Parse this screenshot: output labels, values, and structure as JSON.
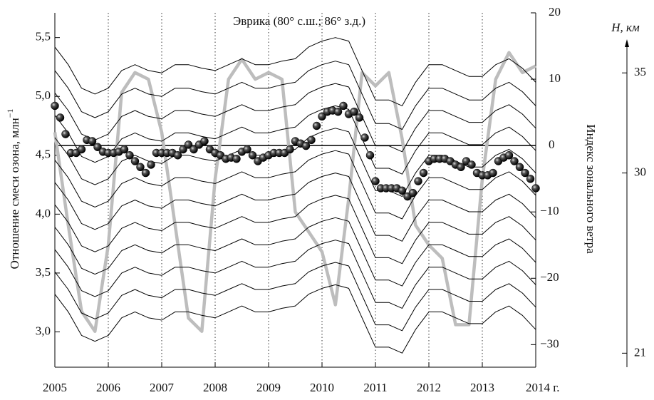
{
  "chart_data": {
    "type": "line",
    "title": "Эврика (80° с.ш.; 86° з.д.)",
    "ylabel": "Отношение смеси озона, млн",
    "ylabel_superscript": "−1",
    "y2label": "Индекс зонального ветра",
    "xlim": [
      2005,
      2014
    ],
    "xticks": [
      2005,
      2006,
      2007,
      2008,
      2009,
      2010,
      2011,
      2012,
      2013,
      {
        "value": 2014,
        "label": "2014 г."
      }
    ],
    "ylim": [
      2.7,
      5.71
    ],
    "yticks": [
      {
        "value": 3,
        "label": "3,0"
      },
      {
        "value": 3.5,
        "label": "3,5"
      },
      {
        "value": 4,
        "label": "4,0"
      },
      {
        "value": 4.5,
        "label": "4,5"
      },
      {
        "value": 5,
        "label": "5,0"
      },
      {
        "value": 5.5,
        "label": "5,5"
      }
    ],
    "y2lim": [
      -33.4,
      20
    ],
    "y2ticks": [
      {
        "value": -30,
        "label": "−30"
      },
      {
        "value": -20,
        "label": "−20"
      },
      {
        "value": -10,
        "label": "−10"
      },
      0,
      10,
      20
    ],
    "grid": true,
    "x": [
      2005.0,
      2005.25,
      2005.5,
      2005.75,
      2006.0,
      2006.25,
      2006.5,
      2006.75,
      2007.0,
      2007.25,
      2007.5,
      2007.75,
      2008.0,
      2008.25,
      2008.5,
      2008.75,
      2009.0,
      2009.25,
      2009.5,
      2009.75,
      2010.0,
      2010.25,
      2010.5,
      2010.75,
      2011.0,
      2011.25,
      2011.5,
      2011.75,
      2012.0,
      2012.25,
      2012.5,
      2012.75,
      2013.0,
      2013.25,
      2013.5,
      2013.75,
      2014.0
    ],
    "series": [
      {
        "color": "#000",
        "values": [
          5.42,
          5.27,
          5.07,
          5.02,
          5.07,
          5.22,
          5.27,
          5.22,
          5.2,
          5.27,
          5.27,
          5.24,
          5.22,
          5.27,
          5.32,
          5.27,
          5.27,
          5.3,
          5.32,
          5.42,
          5.47,
          5.5,
          5.47,
          5.22,
          4.97,
          4.97,
          4.92,
          5.12,
          5.27,
          5.27,
          5.22,
          5.17,
          5.17,
          5.27,
          5.32,
          5.24,
          5.12
        ]
      },
      {
        "color": "#000",
        "values": [
          5.22,
          5.07,
          4.87,
          4.82,
          4.87,
          5.02,
          5.07,
          5.02,
          5.0,
          5.07,
          5.07,
          5.04,
          5.02,
          5.07,
          5.12,
          5.07,
          5.07,
          5.1,
          5.12,
          5.22,
          5.27,
          5.3,
          5.27,
          5.02,
          4.77,
          4.77,
          4.72,
          4.92,
          5.07,
          5.07,
          5.02,
          4.97,
          4.97,
          5.07,
          5.12,
          5.04,
          4.92
        ]
      },
      {
        "color": "#000",
        "values": [
          5.03,
          4.88,
          4.68,
          4.63,
          4.68,
          4.83,
          4.88,
          4.83,
          4.81,
          4.88,
          4.88,
          4.85,
          4.83,
          4.88,
          4.93,
          4.88,
          4.88,
          4.91,
          4.93,
          5.03,
          5.08,
          5.11,
          5.08,
          4.83,
          4.58,
          4.58,
          4.53,
          4.73,
          4.88,
          4.88,
          4.83,
          4.78,
          4.78,
          4.88,
          4.93,
          4.85,
          4.73
        ]
      },
      {
        "color": "#000",
        "values": [
          4.84,
          4.69,
          4.49,
          4.44,
          4.49,
          4.64,
          4.69,
          4.64,
          4.62,
          4.69,
          4.69,
          4.66,
          4.64,
          4.69,
          4.74,
          4.69,
          4.69,
          4.72,
          4.74,
          4.84,
          4.89,
          4.92,
          4.89,
          4.64,
          4.39,
          4.39,
          4.34,
          4.54,
          4.69,
          4.69,
          4.64,
          4.59,
          4.59,
          4.69,
          4.74,
          4.66,
          4.54
        ]
      },
      {
        "color": "#000",
        "values": [
          4.65,
          4.5,
          4.3,
          4.25,
          4.3,
          4.45,
          4.5,
          4.45,
          4.43,
          4.5,
          4.5,
          4.47,
          4.45,
          4.5,
          4.55,
          4.5,
          4.5,
          4.53,
          4.55,
          4.65,
          4.7,
          4.73,
          4.7,
          4.45,
          4.2,
          4.2,
          4.15,
          4.35,
          4.5,
          4.5,
          4.45,
          4.4,
          4.4,
          4.5,
          4.55,
          4.47,
          4.35
        ]
      },
      {
        "color": "#000",
        "values": [
          4.46,
          4.31,
          4.11,
          4.06,
          4.11,
          4.26,
          4.31,
          4.26,
          4.24,
          4.31,
          4.31,
          4.28,
          4.26,
          4.31,
          4.36,
          4.31,
          4.31,
          4.34,
          4.36,
          4.46,
          4.51,
          4.54,
          4.51,
          4.26,
          4.01,
          4.01,
          3.96,
          4.16,
          4.31,
          4.31,
          4.26,
          4.21,
          4.21,
          4.31,
          4.36,
          4.28,
          4.16
        ]
      },
      {
        "color": "#000",
        "values": [
          4.27,
          4.12,
          3.92,
          3.87,
          3.92,
          4.07,
          4.12,
          4.07,
          4.05,
          4.12,
          4.12,
          4.09,
          4.07,
          4.12,
          4.17,
          4.12,
          4.12,
          4.15,
          4.17,
          4.27,
          4.32,
          4.35,
          4.32,
          4.07,
          3.82,
          3.82,
          3.77,
          3.97,
          4.12,
          4.12,
          4.07,
          4.02,
          4.02,
          4.12,
          4.17,
          4.09,
          3.97
        ]
      },
      {
        "color": "#000",
        "values": [
          4.08,
          3.93,
          3.73,
          3.68,
          3.73,
          3.88,
          3.93,
          3.88,
          3.86,
          3.93,
          3.93,
          3.9,
          3.88,
          3.93,
          3.98,
          3.93,
          3.93,
          3.96,
          3.98,
          4.08,
          4.13,
          4.16,
          4.13,
          3.88,
          3.63,
          3.63,
          3.58,
          3.78,
          3.93,
          3.93,
          3.88,
          3.83,
          3.83,
          3.93,
          3.98,
          3.9,
          3.78
        ]
      },
      {
        "color": "#000",
        "values": [
          3.89,
          3.74,
          3.54,
          3.49,
          3.54,
          3.69,
          3.74,
          3.69,
          3.67,
          3.74,
          3.74,
          3.71,
          3.69,
          3.74,
          3.79,
          3.74,
          3.74,
          3.77,
          3.79,
          3.89,
          3.94,
          3.97,
          3.94,
          3.69,
          3.44,
          3.44,
          3.39,
          3.59,
          3.74,
          3.74,
          3.69,
          3.64,
          3.64,
          3.74,
          3.79,
          3.71,
          3.59
        ]
      },
      {
        "color": "#000",
        "values": [
          3.7,
          3.55,
          3.35,
          3.3,
          3.35,
          3.5,
          3.55,
          3.5,
          3.48,
          3.55,
          3.55,
          3.52,
          3.5,
          3.55,
          3.6,
          3.55,
          3.55,
          3.58,
          3.6,
          3.7,
          3.75,
          3.78,
          3.75,
          3.5,
          3.25,
          3.25,
          3.2,
          3.4,
          3.55,
          3.55,
          3.5,
          3.45,
          3.45,
          3.55,
          3.6,
          3.52,
          3.4
        ]
      },
      {
        "color": "#000",
        "values": [
          3.51,
          3.36,
          3.16,
          3.11,
          3.16,
          3.31,
          3.36,
          3.31,
          3.29,
          3.36,
          3.36,
          3.33,
          3.31,
          3.36,
          3.41,
          3.36,
          3.36,
          3.39,
          3.41,
          3.51,
          3.56,
          3.59,
          3.56,
          3.31,
          3.06,
          3.06,
          3.01,
          3.21,
          3.36,
          3.36,
          3.31,
          3.26,
          3.26,
          3.36,
          3.41,
          3.33,
          3.21
        ]
      },
      {
        "color": "#000",
        "values": [
          3.32,
          3.17,
          2.97,
          2.92,
          2.97,
          3.12,
          3.17,
          3.12,
          3.1,
          3.17,
          3.17,
          3.14,
          3.12,
          3.17,
          3.22,
          3.17,
          3.17,
          3.2,
          3.22,
          3.32,
          3.37,
          3.4,
          3.37,
          3.12,
          2.87,
          2.87,
          2.82,
          3.02,
          3.17,
          3.17,
          3.12,
          3.07,
          3.07,
          3.17,
          3.22,
          3.14,
          3.02
        ]
      },
      {
        "color": "#bdbdbd",
        "axis": "y2",
        "values": [
          2,
          -12,
          -25,
          -28,
          -15,
          8,
          11,
          10,
          2,
          -12,
          -26,
          -28,
          -5,
          10,
          13,
          10,
          11,
          10,
          -10,
          -13,
          -16,
          -24,
          -8,
          11,
          9,
          11,
          1,
          -12,
          -15,
          -17,
          -27,
          -27,
          -5,
          10,
          14,
          11,
          12
        ]
      }
    ],
    "dots": {
      "color": "#000",
      "x": [
        2005.0,
        2005.1,
        2005.2,
        2005.3,
        2005.4,
        2005.5,
        2005.6,
        2005.7,
        2005.8,
        2005.9,
        2006.0,
        2006.1,
        2006.2,
        2006.3,
        2006.4,
        2006.5,
        2006.6,
        2006.7,
        2006.8,
        2006.9,
        2007.0,
        2007.1,
        2007.2,
        2007.3,
        2007.4,
        2007.5,
        2007.6,
        2007.7,
        2007.8,
        2007.9,
        2008.0,
        2008.1,
        2008.2,
        2008.3,
        2008.4,
        2008.5,
        2008.6,
        2008.7,
        2008.8,
        2008.9,
        2009.0,
        2009.1,
        2009.2,
        2009.3,
        2009.4,
        2009.5,
        2009.6,
        2009.7,
        2009.8,
        2009.9,
        2010.0,
        2010.1,
        2010.2,
        2010.3,
        2010.4,
        2010.5,
        2010.6,
        2010.7,
        2010.8,
        2010.9,
        2011.0,
        2011.1,
        2011.2,
        2011.3,
        2011.4,
        2011.5,
        2011.6,
        2011.7,
        2011.8,
        2011.9,
        2012.0,
        2012.1,
        2012.2,
        2012.3,
        2012.4,
        2012.5,
        2012.6,
        2012.7,
        2012.8,
        2012.9,
        2013.0,
        2013.1,
        2013.2,
        2013.3,
        2013.4,
        2013.5,
        2013.6,
        2013.7,
        2013.8,
        2013.9,
        2014.0
      ],
      "values": [
        4.92,
        4.82,
        4.68,
        4.52,
        4.52,
        4.55,
        4.63,
        4.62,
        4.57,
        4.53,
        4.52,
        4.52,
        4.53,
        4.55,
        4.5,
        4.45,
        4.4,
        4.35,
        4.42,
        4.52,
        4.52,
        4.52,
        4.52,
        4.5,
        4.55,
        4.59,
        4.55,
        4.59,
        4.62,
        4.55,
        4.52,
        4.5,
        4.47,
        4.48,
        4.47,
        4.53,
        4.55,
        4.5,
        4.45,
        4.48,
        4.5,
        4.52,
        4.52,
        4.52,
        4.55,
        4.62,
        4.6,
        4.58,
        4.63,
        4.75,
        4.83,
        4.87,
        4.88,
        4.87,
        4.92,
        4.85,
        4.87,
        4.82,
        4.65,
        4.5,
        4.28,
        4.22,
        4.22,
        4.22,
        4.22,
        4.2,
        4.15,
        4.18,
        4.28,
        4.35,
        4.45,
        4.47,
        4.47,
        4.47,
        4.45,
        4.42,
        4.4,
        4.45,
        4.42,
        4.35,
        4.33,
        4.33,
        4.35,
        4.45,
        4.48,
        4.5,
        4.45,
        4.4,
        4.35,
        4.3,
        4.22
      ]
    },
    "h_axis": {
      "label": "H, км",
      "lim": [
        20.3,
        38.0
      ],
      "ticks": [
        21,
        30,
        35
      ]
    }
  }
}
